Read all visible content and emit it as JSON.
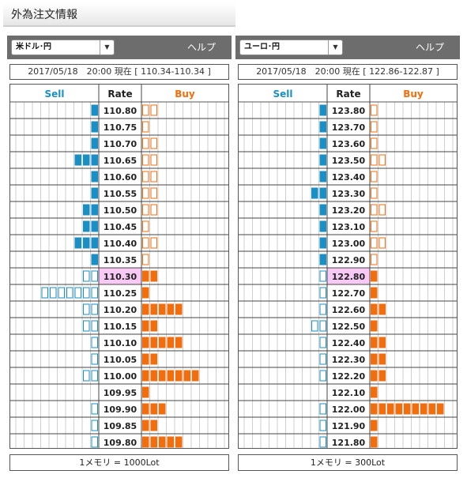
{
  "page": {
    "title": "外為注文情報"
  },
  "colors": {
    "sell": "#1a8fc6",
    "buy": "#f26e0d",
    "current_rate_bg": "#f7c9f4",
    "grid_line": "#cfcfcf",
    "header_bg": "#6d6d6d"
  },
  "units": {
    "left": 1000,
    "right": 300
  },
  "panels": [
    {
      "id": "left",
      "pair": "米ドル･円",
      "help": "ヘルプ",
      "info": "2017/05/18　20:00 現在 [ 110.34-110.34 ]",
      "columns": {
        "sell": "Sell",
        "rate": "Rate",
        "buy": "Buy"
      },
      "current_rate": "110.30",
      "footer": "1メモリ = 1000Lot",
      "rows": [
        {
          "rate": "110.80",
          "sell": 1,
          "buy": 2
        },
        {
          "rate": "110.75",
          "sell": 1,
          "buy": 1
        },
        {
          "rate": "110.70",
          "sell": 1,
          "buy": 2
        },
        {
          "rate": "110.65",
          "sell": 3,
          "buy": 2
        },
        {
          "rate": "110.60",
          "sell": 1,
          "buy": 2
        },
        {
          "rate": "110.55",
          "sell": 1,
          "buy": 2
        },
        {
          "rate": "110.50",
          "sell": 2,
          "buy": 2
        },
        {
          "rate": "110.45",
          "sell": 2,
          "buy": 1
        },
        {
          "rate": "110.40",
          "sell": 3,
          "buy": 2
        },
        {
          "rate": "110.35",
          "sell": 1,
          "buy": 1
        },
        {
          "rate": "110.30",
          "sell": 2,
          "buy": 2
        },
        {
          "rate": "110.25",
          "sell": 7,
          "buy": 1
        },
        {
          "rate": "110.20",
          "sell": 2,
          "buy": 5
        },
        {
          "rate": "110.15",
          "sell": 2,
          "buy": 2
        },
        {
          "rate": "110.10",
          "sell": 1,
          "buy": 5
        },
        {
          "rate": "110.05",
          "sell": 1,
          "buy": 2
        },
        {
          "rate": "110.00",
          "sell": 2,
          "buy": 7
        },
        {
          "rate": "109.95",
          "sell": 0,
          "buy": 1
        },
        {
          "rate": "109.90",
          "sell": 1,
          "buy": 3
        },
        {
          "rate": "109.85",
          "sell": 1,
          "buy": 2
        },
        {
          "rate": "109.80",
          "sell": 1,
          "buy": 5
        }
      ]
    },
    {
      "id": "right",
      "pair": "ユーロ･円",
      "help": "ヘルプ",
      "info": "2017/05/18　20:00 現在 [ 122.86-122.87 ]",
      "columns": {
        "sell": "Sell",
        "rate": "Rate",
        "buy": "Buy"
      },
      "current_rate": "122.80",
      "footer": "1メモリ = 300Lot",
      "rows": [
        {
          "rate": "123.80",
          "sell": 1,
          "buy": 1
        },
        {
          "rate": "123.70",
          "sell": 1,
          "buy": 1
        },
        {
          "rate": "123.60",
          "sell": 1,
          "buy": 1
        },
        {
          "rate": "123.50",
          "sell": 1,
          "buy": 2
        },
        {
          "rate": "123.40",
          "sell": 1,
          "buy": 1
        },
        {
          "rate": "123.30",
          "sell": 2,
          "buy": 1
        },
        {
          "rate": "123.20",
          "sell": 1,
          "buy": 2
        },
        {
          "rate": "123.10",
          "sell": 1,
          "buy": 1
        },
        {
          "rate": "123.00",
          "sell": 1,
          "buy": 2
        },
        {
          "rate": "122.90",
          "sell": 1,
          "buy": 1
        },
        {
          "rate": "122.80",
          "sell": 1,
          "buy": 1
        },
        {
          "rate": "122.70",
          "sell": 1,
          "buy": 1
        },
        {
          "rate": "122.60",
          "sell": 1,
          "buy": 2
        },
        {
          "rate": "122.50",
          "sell": 2,
          "buy": 1
        },
        {
          "rate": "122.40",
          "sell": 1,
          "buy": 2
        },
        {
          "rate": "122.30",
          "sell": 1,
          "buy": 2
        },
        {
          "rate": "122.20",
          "sell": 1,
          "buy": 2
        },
        {
          "rate": "122.10",
          "sell": 0,
          "buy": 1
        },
        {
          "rate": "122.00",
          "sell": 1,
          "buy": 9
        },
        {
          "rate": "121.90",
          "sell": 1,
          "buy": 1
        },
        {
          "rate": "121.80",
          "sell": 1,
          "buy": 1
        }
      ]
    }
  ]
}
